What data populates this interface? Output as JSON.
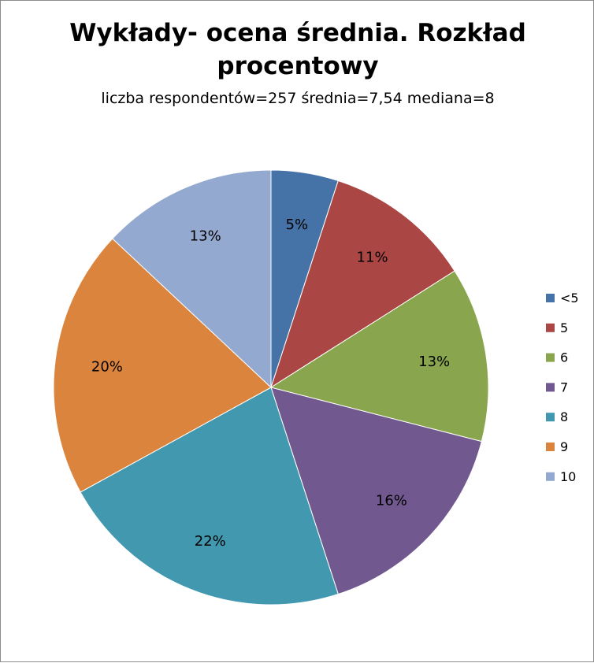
{
  "chart_data": {
    "type": "pie",
    "title": "Wykłady- ocena średnia. Rozkład procentowy",
    "subtitle": "liczba respondentów=257 średnia=7,54 mediana=8",
    "categories": [
      "<5",
      "5",
      "6",
      "7",
      "8",
      "9",
      "10"
    ],
    "values": [
      5,
      11,
      13,
      16,
      22,
      20,
      13
    ],
    "labels": [
      "5%",
      "11%",
      "13%",
      "16%",
      "22%",
      "20%",
      "13%"
    ],
    "colors": [
      "#4572A7",
      "#AA4643",
      "#89A54E",
      "#71588F",
      "#4198AF",
      "#DB843D",
      "#93A9CF"
    ],
    "legend_position": "right"
  }
}
